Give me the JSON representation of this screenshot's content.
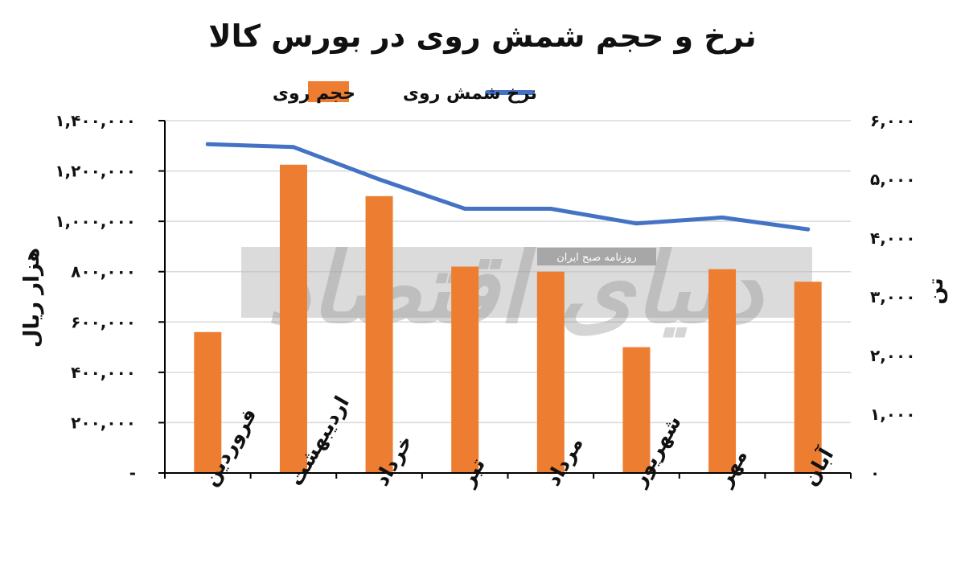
{
  "chart_data": {
    "type": "bar",
    "title": "نرخ و حجم شمش روی در بورس کالا",
    "categories": [
      "فروردین",
      "اردیبهشت",
      "خرداد",
      "تیر",
      "مرداد",
      "شهریور",
      "مهر",
      "آبان"
    ],
    "series": [
      {
        "name": "حجم روی",
        "kind": "bar",
        "axis": "left",
        "color": "#ED7D31",
        "values": [
          560000,
          1225000,
          1100000,
          820000,
          800000,
          500000,
          810000,
          760000
        ]
      },
      {
        "name": "نرخ شمش روی",
        "kind": "line",
        "axis": "right",
        "color": "#4472C4",
        "values": [
          5600,
          5550,
          5000,
          4500,
          4500,
          4250,
          4350,
          4150
        ]
      }
    ],
    "left_axis": {
      "label": "هزار ریال",
      "range": [
        0,
        1400000
      ],
      "ticks": [
        {
          "value": 0,
          "label": "-"
        },
        {
          "value": 200000,
          "label": "۲۰۰,۰۰۰"
        },
        {
          "value": 400000,
          "label": "۴۰۰,۰۰۰"
        },
        {
          "value": 600000,
          "label": "۶۰۰,۰۰۰"
        },
        {
          "value": 800000,
          "label": "۸۰۰,۰۰۰"
        },
        {
          "value": 1000000,
          "label": "۱,۰۰۰,۰۰۰"
        },
        {
          "value": 1200000,
          "label": "۱,۲۰۰,۰۰۰"
        },
        {
          "value": 1400000,
          "label": "۱,۴۰۰,۰۰۰"
        }
      ]
    },
    "right_axis": {
      "label": "تن",
      "range": [
        0,
        6000
      ],
      "ticks": [
        {
          "value": 0,
          "label": "۰"
        },
        {
          "value": 1000,
          "label": "۱,۰۰۰"
        },
        {
          "value": 2000,
          "label": "۲,۰۰۰"
        },
        {
          "value": 3000,
          "label": "۳,۰۰۰"
        },
        {
          "value": 4000,
          "label": "۴,۰۰۰"
        },
        {
          "value": 5000,
          "label": "۵,۰۰۰"
        },
        {
          "value": 6000,
          "label": "۶,۰۰۰"
        }
      ]
    },
    "grid": true,
    "legend_position": "top"
  },
  "watermark": {
    "text": "دنیای اقتصاد",
    "subtext": "روزنامه صبح ایران"
  }
}
